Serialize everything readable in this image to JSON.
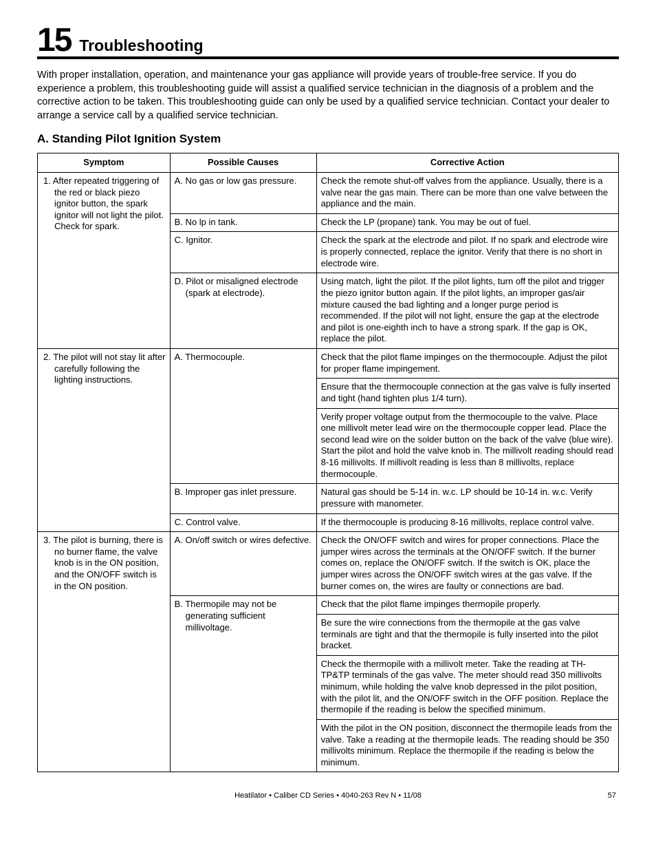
{
  "header": {
    "number": "15",
    "title": "Troubleshooting"
  },
  "intro": "With proper installation, operation, and maintenance your gas appliance will provide years of trouble-free service.  If you do experience a problem, this troubleshooting guide will assist a qualified service technician in the diagnosis of a problem and the corrective action to be taken. This troubleshooting guide can only be used by a qualified service technician. Contact your dealer to arrange a service call by a qualified service technician.",
  "subsection": "A. Standing Pilot Ignition System",
  "table": {
    "headers": [
      "Symptom",
      "Possible Causes",
      "Corrective Action"
    ],
    "symptoms": [
      {
        "text": "1. After repeated triggering of the red or black piezo ignitor button, the spark ignitor will not light the pilot. Check for spark.",
        "causes": [
          {
            "text": "A. No gas or low gas pressure.",
            "actions": [
              "Check the remote shut-off valves from the appliance. Usually, there is a valve near the gas main. There can be more than one valve between the appliance and the main."
            ]
          },
          {
            "text": "B. No lp in tank.",
            "actions": [
              "Check the LP (propane) tank. You may be out of fuel."
            ]
          },
          {
            "text": "C. Ignitor.",
            "actions": [
              "Check the spark at the electrode and pilot. If no spark and electrode wire is properly connected, replace the ignitor.  Verify that there is no short in electrode wire."
            ]
          },
          {
            "text": "D. Pilot or misaligned electrode (spark at electrode).",
            "actions": [
              "Using match, light the pilot. If the pilot lights, turn off the pilot and trigger the piezo ignitor button again. If the pilot lights, an improper gas/air mixture caused the bad lighting and a longer purge period is recommended. If the pilot will not light, ensure the gap at the electrode and pilot is one-eighth inch to have a strong spark. If the gap is OK, replace the pilot."
            ]
          }
        ]
      },
      {
        "text": "2. The pilot will not stay lit after carefully following the lighting instructions.",
        "causes": [
          {
            "text": "A. Thermocouple.",
            "actions": [
              "Check that the pilot flame impinges on the thermocouple. Adjust the pilot for proper flame impingement.",
              "Ensure that the thermocouple connection at the gas valve is fully inserted and tight (hand tighten plus 1/4 turn).",
              "Verify proper voltage output from the thermocouple to the valve. Place one millivolt meter lead wire on the thermocouple copper lead.  Place the second lead wire on the solder button on the back of the valve (blue wire).  Start the pilot and hold the valve knob in. The millivolt reading should read 8-16 millivolts.  If millivolt reading is less than 8 millivolts, replace thermocouple."
            ]
          },
          {
            "text": "B. Improper gas inlet pressure.",
            "actions": [
              "Natural gas should be 5-14 in. w.c.  LP should be 10-14 in. w.c. Verify pressure with manometer."
            ]
          },
          {
            "text": "C. Control valve.",
            "actions": [
              "If the thermocouple is producing 8-16 millivolts, replace control valve."
            ]
          }
        ]
      },
      {
        "text": "3. The pilot is burning, there is no burner flame, the valve knob is in the ON position, and the ON/OFF switch is in the ON position.",
        "causes": [
          {
            "text": "A. On/off switch or wires defective.",
            "actions": [
              "Check the ON/OFF switch and wires for proper connections. Place the jumper wires across the terminals at the ON/OFF switch. If the burner comes on, replace the ON/OFF switch. If the switch is OK, place the jumper wires across the ON/OFF switch wires at the gas valve. If the burner comes on, the wires are faulty or connections are bad."
            ]
          },
          {
            "text": "B. Thermopile may not be generating sufficient millivoltage.",
            "actions": [
              "Check that the pilot flame impinges thermopile properly.",
              "Be sure the wire connections from the thermopile at the gas valve terminals are tight and that the thermopile is fully inserted into the pilot bracket.",
              "Check the thermopile with a millivolt meter. Take the reading at TH-TP&TP terminals of the gas valve. The meter should read 350 millivolts minimum, while holding the valve knob depressed in the pilot position, with the pilot lit, and the ON/OFF switch in the OFF position. Replace the thermopile if the reading is below the specified minimum.",
              "With the pilot in the ON position, disconnect the thermopile leads from the valve. Take a reading at the thermopile leads. The reading should be 350 millivolts minimum. Replace the thermopile if the reading is below the minimum."
            ]
          }
        ]
      }
    ]
  },
  "footer": {
    "center": "Heatilator  •  Caliber CD Series  •  4040-263 Rev N  •  11/08",
    "page": "57"
  }
}
